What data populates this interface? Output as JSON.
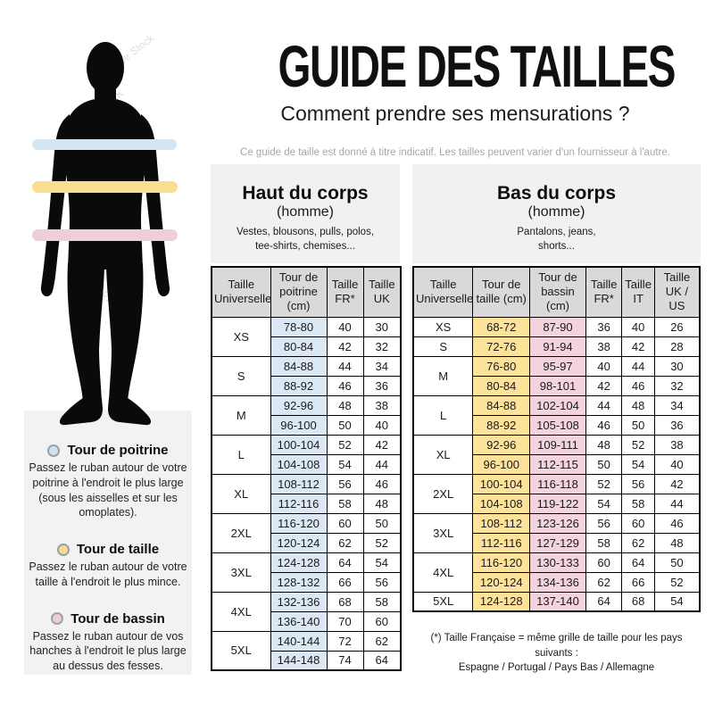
{
  "header": {
    "title": "GUIDE DES TAILLES",
    "subtitle": "Comment prendre ses mensurations ?",
    "note": "Ce guide de taille est donné à titre indicatif. Les tailles peuvent varier d'un fournisseur à l'autre."
  },
  "watermark": {
    "text": "Adobe Stock"
  },
  "colors": {
    "band_chest": "#d4e6f1",
    "band_waist": "#f9de90",
    "band_hips": "#eeced9",
    "cell_chest": "#dbe8f4",
    "cell_waist": "#fde299",
    "cell_hips": "#f2d3de",
    "silhouette": "#0a0a0a",
    "panel_gray": "#f2f2f3",
    "header_gray": "#d9d9d9"
  },
  "legend": {
    "items": [
      {
        "label": "Tour de poitrine",
        "color": "#cfe3f2",
        "description": "Passez le ruban autour de votre poitrine à l'endroit le plus large (sous les aisselles et sur les omoplates)."
      },
      {
        "label": "Tour de taille",
        "color": "#f7dc8e",
        "description": "Passez le ruban autour de votre taille à l'endroit le plus mince."
      },
      {
        "label": "Tour de bassin",
        "color": "#edcdd9",
        "description": "Passez le ruban autour de vos hanches à l'endroit le plus large au dessus des fesses."
      }
    ]
  },
  "upper_table": {
    "title": "Haut du corps",
    "subtitle": "(homme)",
    "items_line1": "Vestes, blousons, pulls, polos,",
    "items_line2": "tee-shirts, chemises...",
    "columns": [
      "Taille Universelle",
      "Tour de poitrine (cm)",
      "Taille FR*",
      "Taille UK"
    ],
    "groups": [
      {
        "size": "XS",
        "rows": [
          [
            "78-80",
            "40",
            "30"
          ],
          [
            "80-84",
            "42",
            "32"
          ]
        ]
      },
      {
        "size": "S",
        "rows": [
          [
            "84-88",
            "44",
            "34"
          ],
          [
            "88-92",
            "46",
            "36"
          ]
        ]
      },
      {
        "size": "M",
        "rows": [
          [
            "92-96",
            "48",
            "38"
          ],
          [
            "96-100",
            "50",
            "40"
          ]
        ]
      },
      {
        "size": "L",
        "rows": [
          [
            "100-104",
            "52",
            "42"
          ],
          [
            "104-108",
            "54",
            "44"
          ]
        ]
      },
      {
        "size": "XL",
        "rows": [
          [
            "108-112",
            "56",
            "46"
          ],
          [
            "112-116",
            "58",
            "48"
          ]
        ]
      },
      {
        "size": "2XL",
        "rows": [
          [
            "116-120",
            "60",
            "50"
          ],
          [
            "120-124",
            "62",
            "52"
          ]
        ]
      },
      {
        "size": "3XL",
        "rows": [
          [
            "124-128",
            "64",
            "54"
          ],
          [
            "128-132",
            "66",
            "56"
          ]
        ]
      },
      {
        "size": "4XL",
        "rows": [
          [
            "132-136",
            "68",
            "58"
          ],
          [
            "136-140",
            "70",
            "60"
          ]
        ]
      },
      {
        "size": "5XL",
        "rows": [
          [
            "140-144",
            "72",
            "62"
          ],
          [
            "144-148",
            "74",
            "64"
          ]
        ]
      }
    ]
  },
  "lower_table": {
    "title": "Bas du corps",
    "subtitle": "(homme)",
    "items_line1": "Pantalons, jeans,",
    "items_line2": "shorts...",
    "columns": [
      "Taille Universelle",
      "Tour de taille (cm)",
      "Tour de bassin (cm)",
      "Taille FR*",
      "Taille IT",
      "Taille UK / US"
    ],
    "groups": [
      {
        "size": "XS",
        "rows": [
          [
            "68-72",
            "87-90",
            "36",
            "40",
            "26"
          ]
        ]
      },
      {
        "size": "S",
        "rows": [
          [
            "72-76",
            "91-94",
            "38",
            "42",
            "28"
          ]
        ]
      },
      {
        "size": "M",
        "rows": [
          [
            "76-80",
            "95-97",
            "40",
            "44",
            "30"
          ],
          [
            "80-84",
            "98-101",
            "42",
            "46",
            "32"
          ]
        ]
      },
      {
        "size": "L",
        "rows": [
          [
            "84-88",
            "102-104",
            "44",
            "48",
            "34"
          ],
          [
            "88-92",
            "105-108",
            "46",
            "50",
            "36"
          ]
        ]
      },
      {
        "size": "XL",
        "rows": [
          [
            "92-96",
            "109-111",
            "48",
            "52",
            "38"
          ],
          [
            "96-100",
            "112-115",
            "50",
            "54",
            "40"
          ]
        ]
      },
      {
        "size": "2XL",
        "rows": [
          [
            "100-104",
            "116-118",
            "52",
            "56",
            "42"
          ],
          [
            "104-108",
            "119-122",
            "54",
            "58",
            "44"
          ]
        ]
      },
      {
        "size": "3XL",
        "rows": [
          [
            "108-112",
            "123-126",
            "56",
            "60",
            "46"
          ],
          [
            "112-116",
            "127-129",
            "58",
            "62",
            "48"
          ]
        ]
      },
      {
        "size": "4XL",
        "rows": [
          [
            "116-120",
            "130-133",
            "60",
            "64",
            "50"
          ],
          [
            "120-124",
            "134-136",
            "62",
            "66",
            "52"
          ]
        ]
      },
      {
        "size": "5XL",
        "rows": [
          [
            "124-128",
            "137-140",
            "64",
            "68",
            "54"
          ]
        ]
      }
    ]
  },
  "footnote": {
    "line1": "(*) Taille Française = même grille de taille pour les pays suivants :",
    "line2": "Espagne / Portugal / Pays Bas / Allemagne"
  }
}
